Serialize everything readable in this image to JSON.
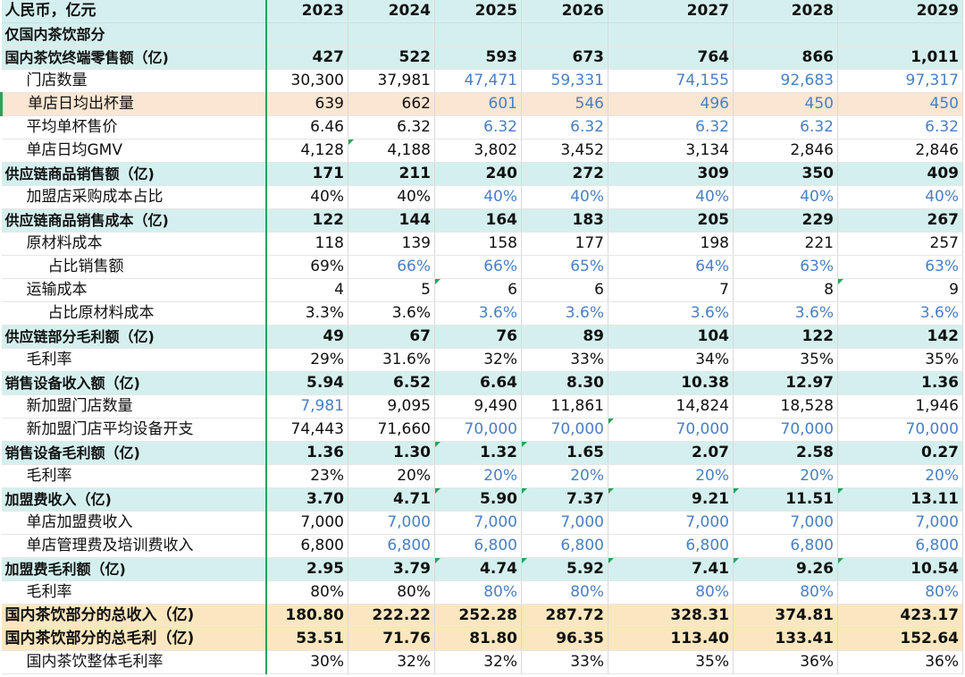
{
  "header": {
    "label": "人民币，亿元",
    "years": [
      "2023",
      "2024",
      "2025",
      "2026",
      "2027",
      "2028",
      "2029"
    ]
  },
  "section": {
    "label": "仅国内茶饮部分"
  },
  "rows": [
    {
      "label": "国内茶饮终端零售额（亿)",
      "style": "bold",
      "level": 0,
      "values": [
        "427",
        "522",
        "593",
        "673",
        "764",
        "866",
        "1,011"
      ],
      "blue": [],
      "notes": []
    },
    {
      "label": "门店数量",
      "style": "",
      "level": 1,
      "values": [
        "30,300",
        "37,981",
        "47,471",
        "59,331",
        "74,155",
        "92,683",
        "97,317"
      ],
      "blue": [
        2,
        3,
        4,
        5,
        6
      ],
      "notes": []
    },
    {
      "label": "单店日均出杯量",
      "style": "hl",
      "level": 1,
      "values": [
        "639",
        "662",
        "601",
        "546",
        "496",
        "450",
        "450"
      ],
      "blue": [
        2,
        3,
        4,
        5,
        6
      ],
      "notes": []
    },
    {
      "label": "平均单杯售价",
      "style": "",
      "level": 1,
      "values": [
        "6.46",
        "6.32",
        "6.32",
        "6.32",
        "6.32",
        "6.32",
        "6.32"
      ],
      "blue": [
        2,
        3,
        4,
        5,
        6
      ],
      "notes": []
    },
    {
      "label": "单店日均GMV",
      "style": "",
      "level": 1,
      "values": [
        "4,128",
        "4,188",
        "3,802",
        "3,452",
        "3,134",
        "2,846",
        "2,846"
      ],
      "blue": [],
      "notes": [
        1
      ]
    },
    {
      "label": "供应链商品销售额（亿)",
      "style": "bold",
      "level": 0,
      "values": [
        "171",
        "211",
        "240",
        "272",
        "309",
        "350",
        "409"
      ],
      "blue": [],
      "notes": []
    },
    {
      "label": "加盟店采购成本占比",
      "style": "",
      "level": 1,
      "values": [
        "40%",
        "40%",
        "40%",
        "40%",
        "40%",
        "40%",
        "40%"
      ],
      "blue": [
        2,
        3,
        4,
        5,
        6
      ],
      "notes": []
    },
    {
      "label": "供应链商品销售成本（亿)",
      "style": "bold",
      "level": 0,
      "values": [
        "122",
        "144",
        "164",
        "183",
        "205",
        "229",
        "267"
      ],
      "blue": [],
      "notes": []
    },
    {
      "label": "原材料成本",
      "style": "",
      "level": 1,
      "values": [
        "118",
        "139",
        "158",
        "177",
        "198",
        "221",
        "257"
      ],
      "blue": [],
      "notes": []
    },
    {
      "label": "占比销售额",
      "style": "",
      "level": 2,
      "values": [
        "69%",
        "66%",
        "66%",
        "65%",
        "64%",
        "63%",
        "63%"
      ],
      "blue": [
        1,
        2,
        3,
        4,
        5,
        6
      ],
      "notes": []
    },
    {
      "label": "运输成本",
      "style": "",
      "level": 1,
      "values": [
        "4",
        "5",
        "6",
        "6",
        "7",
        "8",
        "9"
      ],
      "blue": [],
      "notes": [
        2,
        6
      ]
    },
    {
      "label": "占比原材料成本",
      "style": "",
      "level": 2,
      "values": [
        "3.3%",
        "3.6%",
        "3.6%",
        "3.6%",
        "3.6%",
        "3.6%",
        "3.6%"
      ],
      "blue": [
        2,
        3,
        4,
        5,
        6
      ],
      "notes": []
    },
    {
      "label": "供应链部分毛利额（亿)",
      "style": "bold",
      "level": 0,
      "values": [
        "49",
        "67",
        "76",
        "89",
        "104",
        "122",
        "142"
      ],
      "blue": [],
      "notes": []
    },
    {
      "label": "毛利率",
      "style": "",
      "level": 1,
      "values": [
        "29%",
        "31.6%",
        "32%",
        "33%",
        "34%",
        "35%",
        "35%"
      ],
      "blue": [],
      "notes": []
    },
    {
      "label": "销售设备收入额（亿)",
      "style": "bold",
      "level": 0,
      "values": [
        "5.94",
        "6.52",
        "6.64",
        "8.30",
        "10.38",
        "12.97",
        "1.36"
      ],
      "blue": [],
      "notes": []
    },
    {
      "label": "新加盟门店数量",
      "style": "",
      "level": 1,
      "values": [
        "7,981",
        "9,095",
        "9,490",
        "11,861",
        "14,824",
        "18,528",
        "1,946"
      ],
      "blue": [
        0
      ],
      "notes": []
    },
    {
      "label": "新加盟门店平均设备开支",
      "style": "",
      "level": 1,
      "values": [
        "74,443",
        "71,660",
        "70,000",
        "70,000",
        "70,000",
        "70,000",
        "70,000"
      ],
      "blue": [
        2,
        3,
        4,
        5,
        6
      ],
      "notes": [
        4
      ]
    },
    {
      "label": "销售设备毛利额（亿)",
      "style": "bold",
      "level": 0,
      "values": [
        "1.36",
        "1.30",
        "1.32",
        "1.65",
        "2.07",
        "2.58",
        "0.27"
      ],
      "blue": [],
      "notes": [
        2,
        3
      ]
    },
    {
      "label": "毛利率",
      "style": "",
      "level": 1,
      "values": [
        "23%",
        "20%",
        "20%",
        "20%",
        "20%",
        "20%",
        "20%"
      ],
      "blue": [
        2,
        3,
        4,
        5,
        6
      ],
      "notes": []
    },
    {
      "label": "加盟费收入（亿)",
      "style": "bold",
      "level": 0,
      "values": [
        "3.70",
        "4.71",
        "5.90",
        "7.37",
        "9.21",
        "11.51",
        "13.11"
      ],
      "blue": [],
      "notes": [
        2,
        3,
        4,
        5,
        6
      ]
    },
    {
      "label": "单店加盟费收入",
      "style": "",
      "level": 1,
      "values": [
        "7,000",
        "7,000",
        "7,000",
        "7,000",
        "7,000",
        "7,000",
        "7,000"
      ],
      "blue": [
        1,
        2,
        3,
        4,
        5,
        6
      ],
      "notes": []
    },
    {
      "label": "单店管理费及培训费收入",
      "style": "",
      "level": 1,
      "values": [
        "6,800",
        "6,800",
        "6,800",
        "6,800",
        "6,800",
        "6,800",
        "6,800"
      ],
      "blue": [
        1,
        2,
        3,
        4,
        5,
        6
      ],
      "notes": []
    },
    {
      "label": "加盟费毛利额（亿)",
      "style": "bold",
      "level": 0,
      "values": [
        "2.95",
        "3.79",
        "4.74",
        "5.92",
        "7.41",
        "9.26",
        "10.54"
      ],
      "blue": [],
      "notes": [
        2,
        3,
        4,
        5,
        6
      ]
    },
    {
      "label": "毛利率",
      "style": "",
      "level": 1,
      "values": [
        "80%",
        "80%",
        "80%",
        "80%",
        "80%",
        "80%",
        "80%"
      ],
      "blue": [
        2,
        3,
        4,
        5,
        6
      ],
      "notes": []
    },
    {
      "label": "国内茶饮部分的总收入（亿)",
      "style": "gold",
      "level": 0,
      "values": [
        "180.80",
        "222.22",
        "252.28",
        "287.72",
        "328.31",
        "374.81",
        "423.17"
      ],
      "blue": [],
      "notes": []
    },
    {
      "label": "国内茶饮部分的总毛利（亿)",
      "style": "gold",
      "level": 0,
      "values": [
        "53.51",
        "71.76",
        "81.80",
        "96.35",
        "113.40",
        "133.41",
        "152.64"
      ],
      "blue": [],
      "notes": []
    },
    {
      "label": "国内茶饮整体毛利率",
      "style": "",
      "level": 1,
      "values": [
        "30%",
        "32%",
        "32%",
        "33%",
        "35%",
        "36%",
        "36%"
      ],
      "blue": [],
      "notes": []
    }
  ]
}
